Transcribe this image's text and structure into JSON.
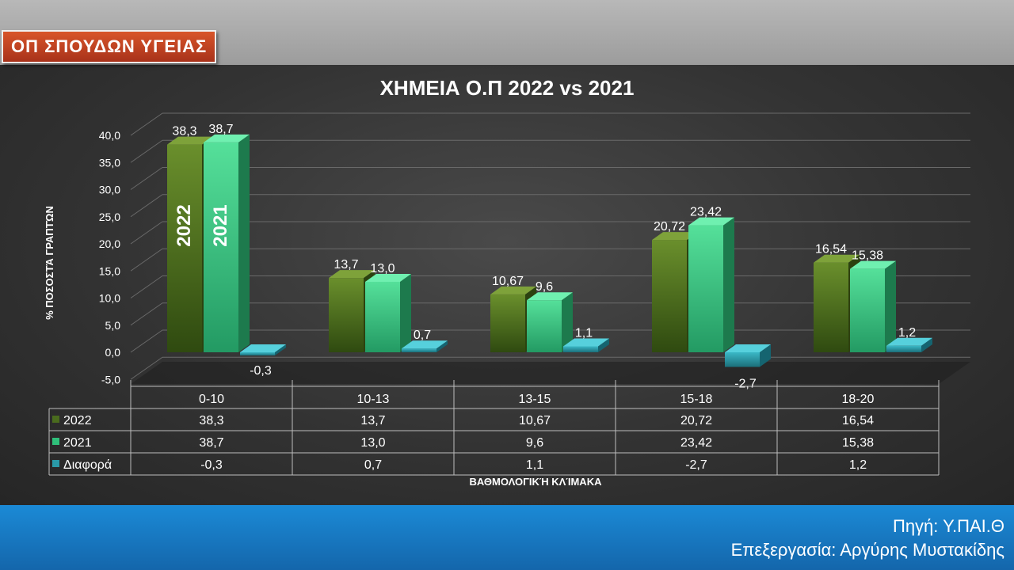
{
  "header": {
    "tag": "ΟΠ ΣΠΟΥΔΩΝ ΥΓΕΙΑΣ"
  },
  "footer": {
    "source": "Πηγή: Υ.ΠΑΙ.Θ",
    "processing": "Επεξεργασία: Αργύρης Μυστακίδης"
  },
  "colors": {
    "s2022": "#4a6b1e",
    "s2021": "#2fbf7a",
    "diff": "#2a9aa8",
    "grid": "#6a6a6a"
  },
  "chart_data": {
    "type": "bar",
    "title": "ΧΗΜΕΙΑ Ο.Π 2022 vs 2021",
    "xlabel": "ΒΑΘΜΟΛΟΓΙΚΉ ΚΛΊΜΑΚΑ",
    "ylabel": "% ΠΟΣΟΣΤΆ ΓΡΑΠΤΏΝ",
    "ylim": [
      -5,
      40
    ],
    "yticks": [
      "-5,0",
      "0,0",
      "5,0",
      "10,0",
      "15,0",
      "20,0",
      "25,0",
      "30,0",
      "35,0",
      "40,0"
    ],
    "categories": [
      "0-10",
      "10-13",
      "13-15",
      "15-18",
      "18-20"
    ],
    "series": [
      {
        "name": "2022",
        "values": [
          38.3,
          13.7,
          10.67,
          20.72,
          16.54
        ],
        "labels": [
          "38,3",
          "13,7",
          "10,67",
          "20,72",
          "16,54"
        ]
      },
      {
        "name": "2021",
        "values": [
          38.7,
          13.0,
          9.6,
          23.42,
          15.38
        ],
        "labels": [
          "38,7",
          "13,0",
          "9,6",
          "23,42",
          "15,38"
        ]
      },
      {
        "name": "Διαφορά",
        "values": [
          -0.3,
          0.7,
          1.1,
          -2.7,
          1.2
        ],
        "labels": [
          "-0,3",
          "0,7",
          "1,1",
          "-2,7",
          "1,2"
        ]
      }
    ],
    "annotations": [
      "2022",
      "2021"
    ]
  }
}
